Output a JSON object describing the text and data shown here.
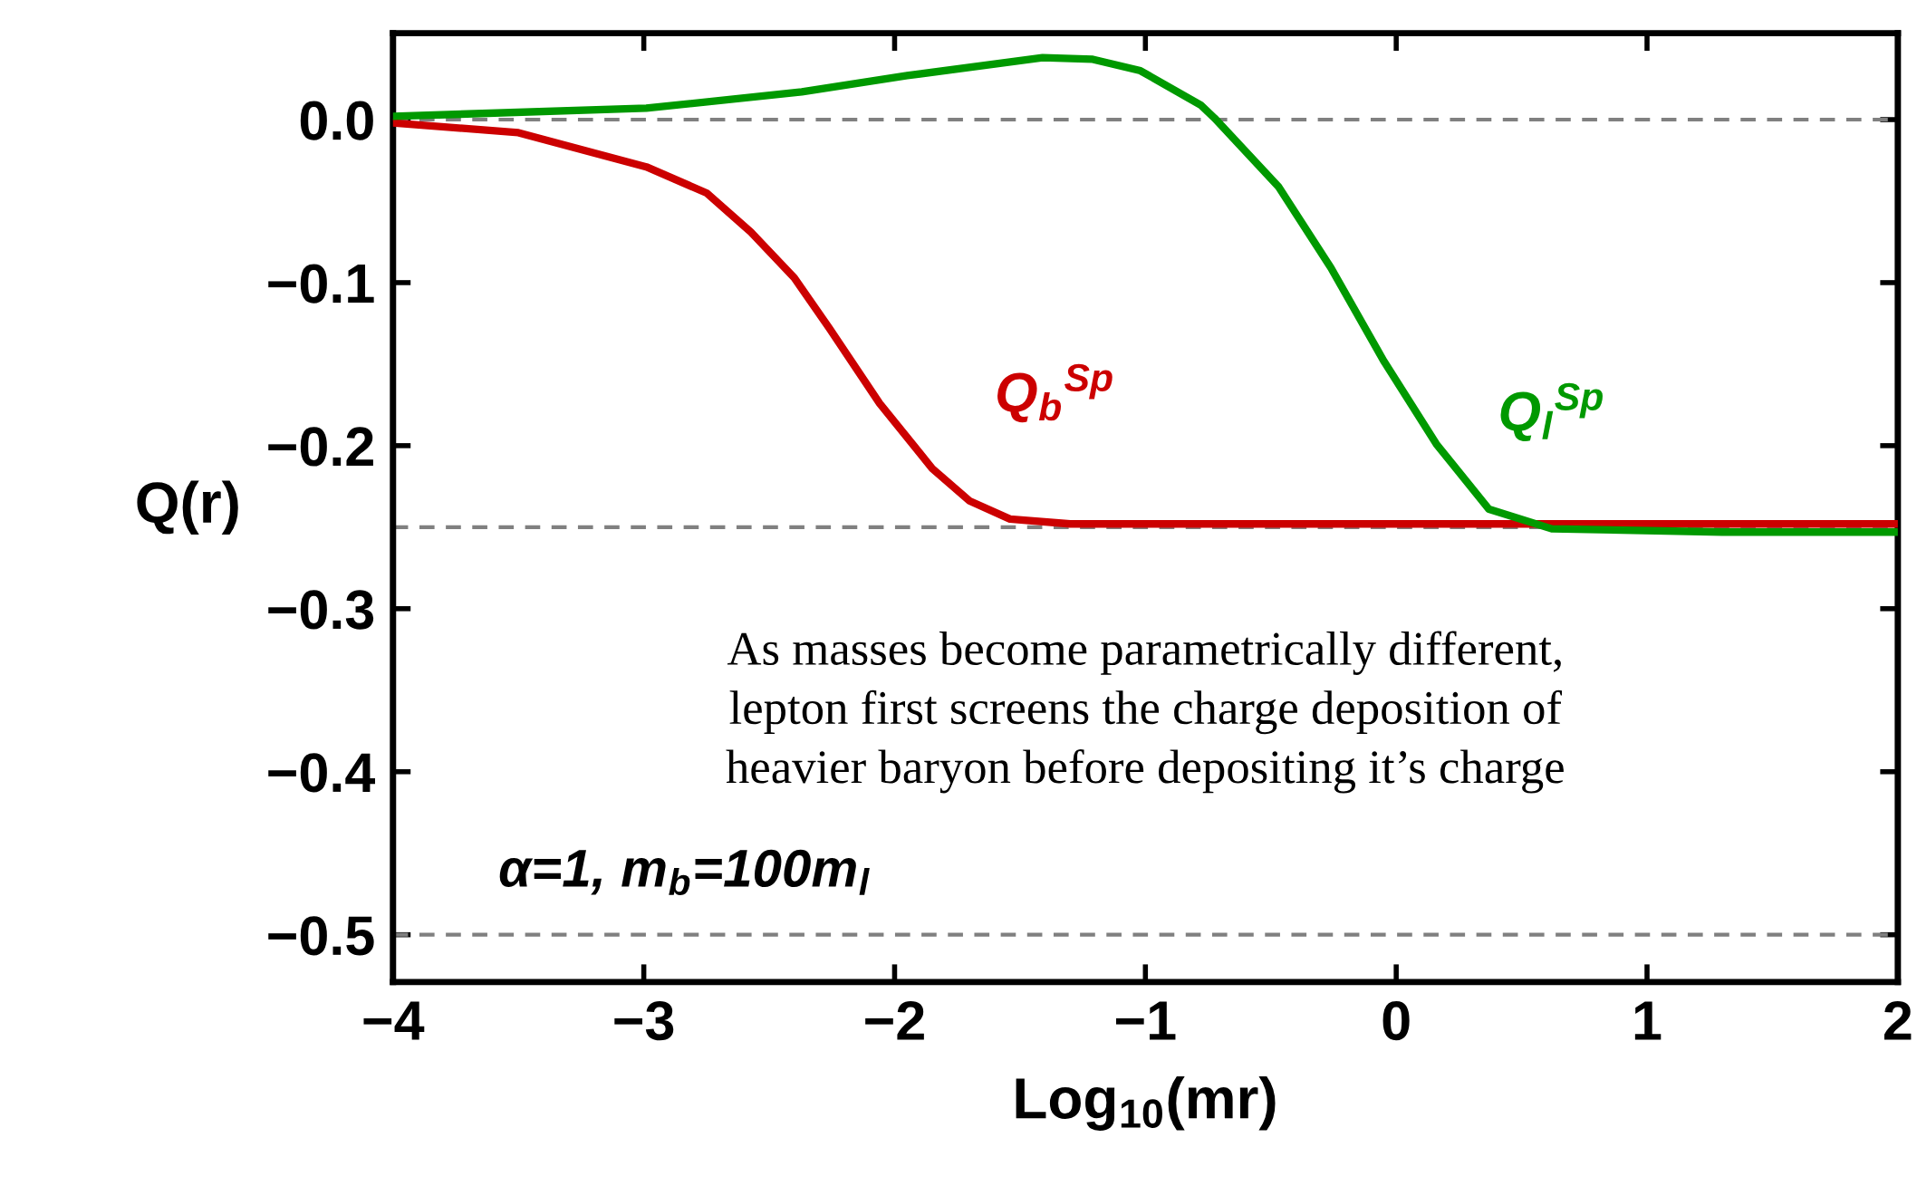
{
  "chart_data": {
    "type": "line",
    "xlabel": "Log$_{10}$(mr)",
    "ylabel": "Q(r)",
    "xlim": [
      -4,
      2
    ],
    "ylim": [
      -0.529,
      0.053
    ],
    "xticks": [
      {
        "value": -4,
        "label": "−4"
      },
      {
        "value": -3,
        "label": "−3"
      },
      {
        "value": -2,
        "label": "−2"
      },
      {
        "value": -1,
        "label": "−1"
      },
      0,
      1,
      2
    ],
    "yticks": [
      {
        "value": 0,
        "label": "0.0"
      },
      {
        "value": -0.1,
        "label": "−0.1"
      },
      {
        "value": -0.2,
        "label": "−0.2"
      },
      {
        "value": -0.3,
        "label": "−0.3"
      },
      {
        "value": -0.4,
        "label": "−0.4"
      },
      {
        "value": -0.5,
        "label": "−0.5"
      }
    ],
    "grid": false,
    "line_style": "solid",
    "marker": "none",
    "series": [
      {
        "name": "Q$_{b}$$^{Sp}$",
        "color": "#cc0000",
        "x": [
          -4,
          -3.5,
          -2.99,
          -2.75,
          -2.573,
          -2.4,
          -2.26,
          -2.06,
          -1.85,
          -1.7,
          -1.54,
          -1.3,
          -0.78,
          0,
          1,
          2
        ],
        "values": [
          -0.002,
          -0.008,
          -0.029,
          -0.045,
          -0.069,
          -0.097,
          -0.128,
          -0.174,
          -0.214,
          -0.234,
          -0.245,
          -0.248,
          -0.248,
          -0.248,
          -0.248,
          -0.248
        ]
      },
      {
        "name": "Q$_{l}$$^{Sp}$",
        "color": "#009900",
        "x": [
          -4,
          -2.99,
          -2.37,
          -1.95,
          -1.41,
          -1.21,
          -1.02,
          -0.78,
          -0.725,
          -0.47,
          -0.26,
          -0.05,
          0.16,
          0.37,
          0.62,
          1.3,
          2
        ],
        "values": [
          0.002,
          0.007,
          0.017,
          0.027,
          0.038,
          0.037,
          0.03,
          0.009,
          0.001,
          -0.041,
          -0.091,
          -0.148,
          -0.199,
          -0.239,
          -0.251,
          -0.253,
          -0.253
        ]
      }
    ],
    "ref_lines": [
      {
        "axis": "y",
        "value": 0,
        "color": "#808080",
        "line_style": "dashed"
      },
      {
        "axis": "y",
        "value": -0.25,
        "color": "#808080",
        "line_style": "dashed"
      },
      {
        "axis": "y",
        "value": -0.5,
        "color": "#808080",
        "line_style": "dashed"
      }
    ],
    "annotations": [
      "As masses become parametrically different,\nlepton first screens the charge deposition of\nheavier baryon before depositing it’s charge",
      "α=1, m$_{b}$=100m$_{l}$"
    ]
  }
}
